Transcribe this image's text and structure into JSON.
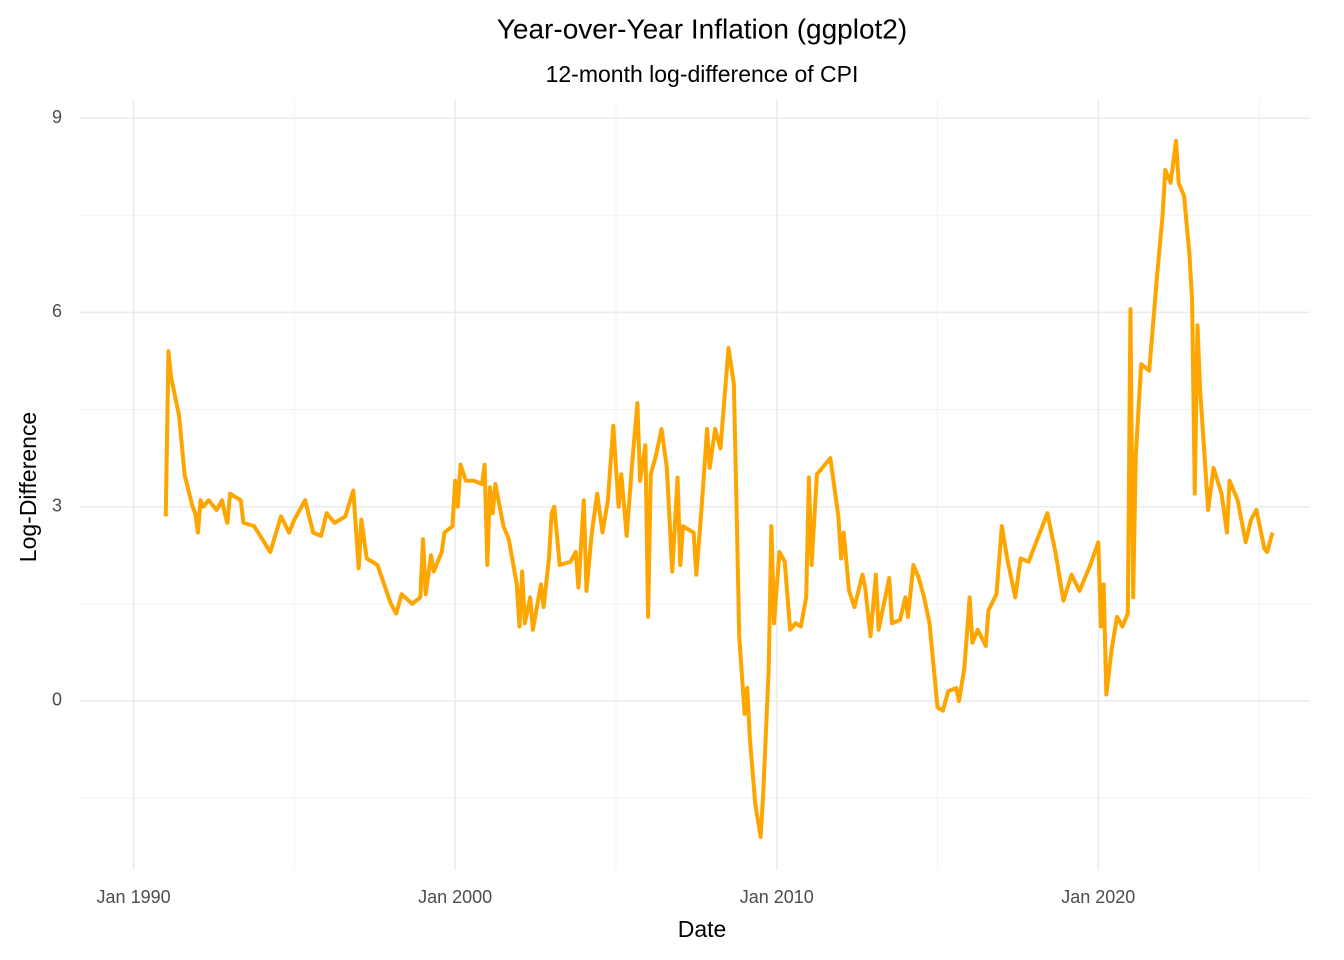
{
  "chart_data": {
    "type": "line",
    "title": "Year-over-Year Inflation (ggplot2)",
    "subtitle": "12-month log-difference of CPI",
    "x_label": "Date",
    "y_label": "Log-Difference",
    "color": "#ffa500",
    "grid": true,
    "xlim": [
      "1988-05",
      "2026-08"
    ],
    "xticks": [
      {
        "value": "1990-01",
        "label": "Jan 1990"
      },
      {
        "value": "2000-01",
        "label": "Jan 2000"
      },
      {
        "value": "2010-01",
        "label": "Jan 2010"
      },
      {
        "value": "2020-01",
        "label": "Jan 2020"
      }
    ],
    "x_minor_ticks": [
      "1995-01",
      "2005-01",
      "2015-01",
      "2025-01"
    ],
    "ylim": [
      -2.61,
      9.28
    ],
    "yticks": [
      0,
      3,
      6,
      9
    ],
    "y_minor_ticks": [
      -1.5,
      1.5,
      4.5,
      7.5
    ],
    "x": [
      "1991-01",
      "1991-02",
      "1991-03",
      "1991-04",
      "1991-06",
      "1991-08",
      "1991-11",
      "1991-12",
      "1992-01",
      "1992-02",
      "1992-03",
      "1992-05",
      "1992-08",
      "1992-10",
      "1992-11",
      "1992-12",
      "1993-01",
      "1993-05",
      "1993-06",
      "1993-10",
      "1994-01",
      "1994-04",
      "1994-08",
      "1994-11",
      "1995-01",
      "1995-05",
      "1995-08",
      "1995-11",
      "1996-01",
      "1996-04",
      "1996-08",
      "1996-11",
      "1997-01",
      "1997-02",
      "1997-04",
      "1997-08",
      "1998-01",
      "1998-03",
      "1998-05",
      "1998-09",
      "1998-12",
      "1999-01",
      "1999-02",
      "1999-04",
      "1999-05",
      "1999-08",
      "1999-09",
      "1999-12",
      "2000-01",
      "2000-02",
      "2000-03",
      "2000-05",
      "2000-08",
      "2000-11",
      "2000-12",
      "2001-01",
      "2001-02",
      "2001-03",
      "2001-04",
      "2001-07",
      "2001-09",
      "2001-12",
      "2002-01",
      "2002-02",
      "2002-03",
      "2002-05",
      "2002-06",
      "2002-09",
      "2002-10",
      "2002-12",
      "2003-01",
      "2003-02",
      "2003-04",
      "2003-08",
      "2003-10",
      "2003-11",
      "2004-01",
      "2004-02",
      "2004-04",
      "2004-06",
      "2004-08",
      "2004-10",
      "2004-12",
      "2005-02",
      "2005-03",
      "2005-05",
      "2005-07",
      "2005-09",
      "2005-10",
      "2005-12",
      "2006-01",
      "2006-02",
      "2006-04",
      "2006-06",
      "2006-08",
      "2006-10",
      "2006-12",
      "2007-01",
      "2007-02",
      "2007-06",
      "2007-07",
      "2007-09",
      "2007-11",
      "2007-12",
      "2008-02",
      "2008-04",
      "2008-07",
      "2008-09",
      "2008-10",
      "2008-11",
      "2009-01",
      "2009-02",
      "2009-03",
      "2009-05",
      "2009-07",
      "2009-08",
      "2009-10",
      "2009-11",
      "2009-12",
      "2010-02",
      "2010-04",
      "2010-06",
      "2010-08",
      "2010-10",
      "2010-12",
      "2011-01",
      "2011-02",
      "2011-04",
      "2011-09",
      "2011-12",
      "2012-01",
      "2012-02",
      "2012-04",
      "2012-06",
      "2012-09",
      "2012-10",
      "2012-12",
      "2013-02",
      "2013-03",
      "2013-06",
      "2013-07",
      "2013-08",
      "2013-11",
      "2014-01",
      "2014-02",
      "2014-04",
      "2014-06",
      "2014-08",
      "2014-10",
      "2015-01",
      "2015-03",
      "2015-05",
      "2015-08",
      "2015-09",
      "2015-11",
      "2016-01",
      "2016-02",
      "2016-04",
      "2016-07",
      "2016-08",
      "2016-11",
      "2017-01",
      "2017-03",
      "2017-06",
      "2017-08",
      "2017-11",
      "2018-06",
      "2018-09",
      "2018-12",
      "2019-03",
      "2019-06",
      "2019-10",
      "2020-01",
      "2020-02",
      "2020-03",
      "2020-04",
      "2020-06",
      "2020-08",
      "2020-10",
      "2020-12",
      "2021-01",
      "2021-02",
      "2021-03",
      "2021-05",
      "2021-08",
      "2021-11",
      "2022-01",
      "2022-02",
      "2022-04",
      "2022-06",
      "2022-07",
      "2022-09",
      "2022-11",
      "2022-12",
      "2023-01",
      "2023-02",
      "2023-03",
      "2023-06",
      "2023-08",
      "2023-11",
      "2024-01",
      "2024-02",
      "2024-05",
      "2024-08",
      "2024-10",
      "2024-12",
      "2025-03",
      "2025-04",
      "2025-06"
    ],
    "values": [
      2.85,
      5.4,
      5.0,
      4.8,
      4.4,
      3.5,
      3.0,
      2.9,
      2.6,
      3.1,
      3.0,
      3.1,
      2.95,
      3.1,
      2.9,
      2.75,
      3.2,
      3.1,
      2.75,
      2.7,
      2.5,
      2.3,
      2.85,
      2.6,
      2.8,
      3.1,
      2.6,
      2.55,
      2.9,
      2.75,
      2.85,
      3.25,
      2.05,
      2.8,
      2.2,
      2.1,
      1.5,
      1.35,
      1.65,
      1.5,
      1.6,
      2.5,
      1.65,
      2.25,
      2.0,
      2.3,
      2.6,
      2.7,
      3.4,
      3.0,
      3.65,
      3.4,
      3.4,
      3.35,
      3.65,
      2.1,
      3.3,
      2.9,
      3.35,
      2.7,
      2.5,
      1.8,
      1.15,
      2.0,
      1.2,
      1.6,
      1.1,
      1.8,
      1.45,
      2.2,
      2.9,
      3.0,
      2.1,
      2.15,
      2.3,
      1.75,
      3.1,
      1.7,
      2.6,
      3.2,
      2.6,
      3.1,
      4.25,
      3.0,
      3.5,
      2.55,
      3.65,
      4.6,
      3.4,
      3.95,
      1.3,
      3.5,
      3.8,
      4.2,
      3.6,
      2.0,
      3.45,
      2.1,
      2.7,
      2.6,
      1.95,
      3.0,
      4.2,
      3.6,
      4.2,
      3.9,
      5.45,
      4.9,
      3.0,
      1.0,
      -0.2,
      0.2,
      -0.6,
      -1.6,
      -2.1,
      -1.4,
      0.5,
      2.7,
      1.2,
      2.3,
      2.15,
      1.1,
      1.2,
      1.15,
      1.6,
      3.45,
      2.1,
      3.5,
      3.75,
      2.85,
      2.2,
      2.6,
      1.7,
      1.45,
      1.95,
      1.75,
      1.0,
      1.95,
      1.1,
      1.7,
      1.9,
      1.2,
      1.25,
      1.6,
      1.3,
      2.1,
      1.9,
      1.6,
      1.2,
      -0.1,
      -0.15,
      0.15,
      0.2,
      0.0,
      0.5,
      1.6,
      0.9,
      1.1,
      0.85,
      1.4,
      1.65,
      2.7,
      2.2,
      1.6,
      2.2,
      2.15,
      2.9,
      2.3,
      1.55,
      1.95,
      1.7,
      2.1,
      2.45,
      1.15,
      1.8,
      0.1,
      0.8,
      1.3,
      1.15,
      1.35,
      6.05,
      1.6,
      3.8,
      5.2,
      5.1,
      6.6,
      7.5,
      8.2,
      8.0,
      8.65,
      8.0,
      7.8,
      6.9,
      6.2,
      3.2,
      5.8,
      4.8,
      2.95,
      3.6,
      3.2,
      2.6,
      3.4,
      3.1,
      2.45,
      2.8,
      2.95,
      2.35,
      2.3,
      2.6
    ]
  }
}
